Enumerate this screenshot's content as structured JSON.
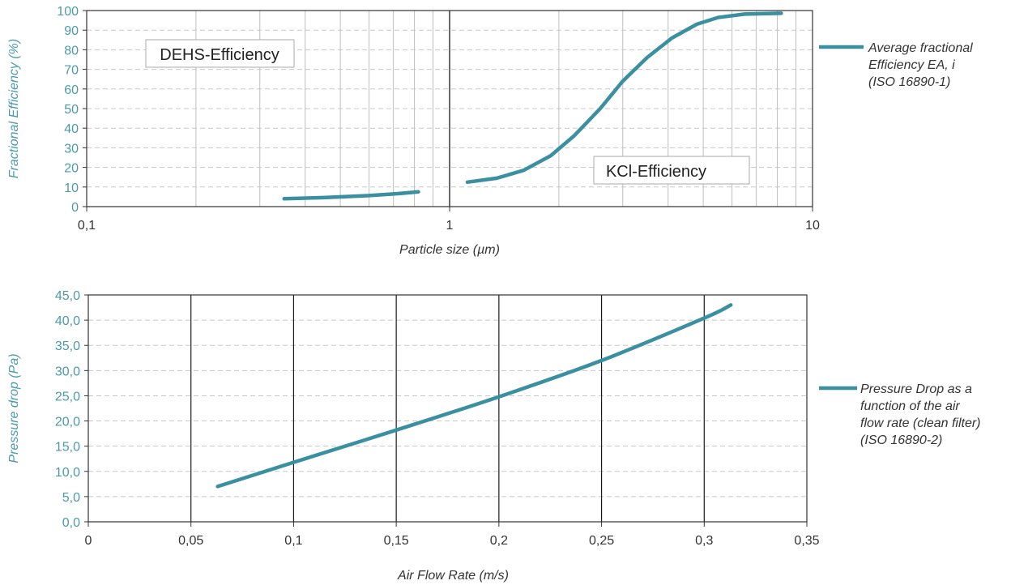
{
  "colors": {
    "series": "#3a8fa0",
    "axis_tick": "#4b9aab",
    "grid_dash": "#c8c8c8",
    "grid_solid": "#1a1a1a",
    "minor_grid": "#bfbfbf"
  },
  "chart_data": [
    {
      "type": "line",
      "xlabel": "Particle size (µm)",
      "ylabel": "Fractional Efficiency (%)",
      "x_scale": "log",
      "xlim": [
        0.1,
        10
      ],
      "ylim": [
        0,
        100
      ],
      "x_ticks": [
        "0,1",
        "1",
        "10"
      ],
      "y_ticks": [
        "0",
        "10",
        "20",
        "30",
        "40",
        "50",
        "60",
        "70",
        "80",
        "90",
        "100"
      ],
      "legend_position": "right",
      "legend_lines": [
        "Average fractional",
        "Efficiency EA, i",
        "(ISO 16890-1)"
      ],
      "annotations": [
        {
          "text": "DEHS-Efficiency"
        },
        {
          "text": "KCl-Efficiency"
        }
      ],
      "series": [
        {
          "name": "Average fractional Efficiency EA, i (ISO 16890-1)",
          "segments": [
            [
              [
                0.35,
                4
              ],
              [
                0.45,
                4.6
              ],
              [
                0.6,
                5.6
              ],
              [
                0.72,
                6.6
              ],
              [
                0.82,
                7.5
              ]
            ],
            [
              [
                1.12,
                12.5
              ],
              [
                1.35,
                14.5
              ],
              [
                1.6,
                18.5
              ],
              [
                1.9,
                26
              ],
              [
                2.2,
                36
              ],
              [
                2.6,
                50
              ],
              [
                3.0,
                64
              ],
              [
                3.5,
                76
              ],
              [
                4.1,
                86
              ],
              [
                4.8,
                93
              ],
              [
                5.5,
                96.5
              ],
              [
                6.5,
                98.2
              ],
              [
                8.2,
                98.6
              ]
            ]
          ]
        }
      ]
    },
    {
      "type": "line",
      "xlabel": "Air Flow Rate (m/s)",
      "ylabel": "Pressure drop (Pa)",
      "xlim": [
        0,
        0.35
      ],
      "ylim": [
        0,
        45
      ],
      "x_ticks": [
        "0",
        "0,05",
        "0,1",
        "0,15",
        "0,2",
        "0,25",
        "0,3",
        "0,35"
      ],
      "y_ticks": [
        "0,0",
        "5,0",
        "10,0",
        "15,0",
        "20,0",
        "25,0",
        "30,0",
        "35,0",
        "40,0",
        "45,0"
      ],
      "legend_position": "right",
      "legend_lines": [
        "Pressure Drop as a",
        "function of the air",
        "flow rate (clean filter)",
        "(ISO 16890-2)"
      ],
      "series": [
        {
          "name": "Pressure Drop as a function of the air flow rate (clean filter) (ISO 16890-2)",
          "points": [
            [
              0.063,
              7.0
            ],
            [
              0.1,
              11.8
            ],
            [
              0.15,
              18.2
            ],
            [
              0.2,
              24.8
            ],
            [
              0.25,
              32.0
            ],
            [
              0.3,
              40.4
            ],
            [
              0.313,
              43.0
            ]
          ]
        }
      ]
    }
  ]
}
